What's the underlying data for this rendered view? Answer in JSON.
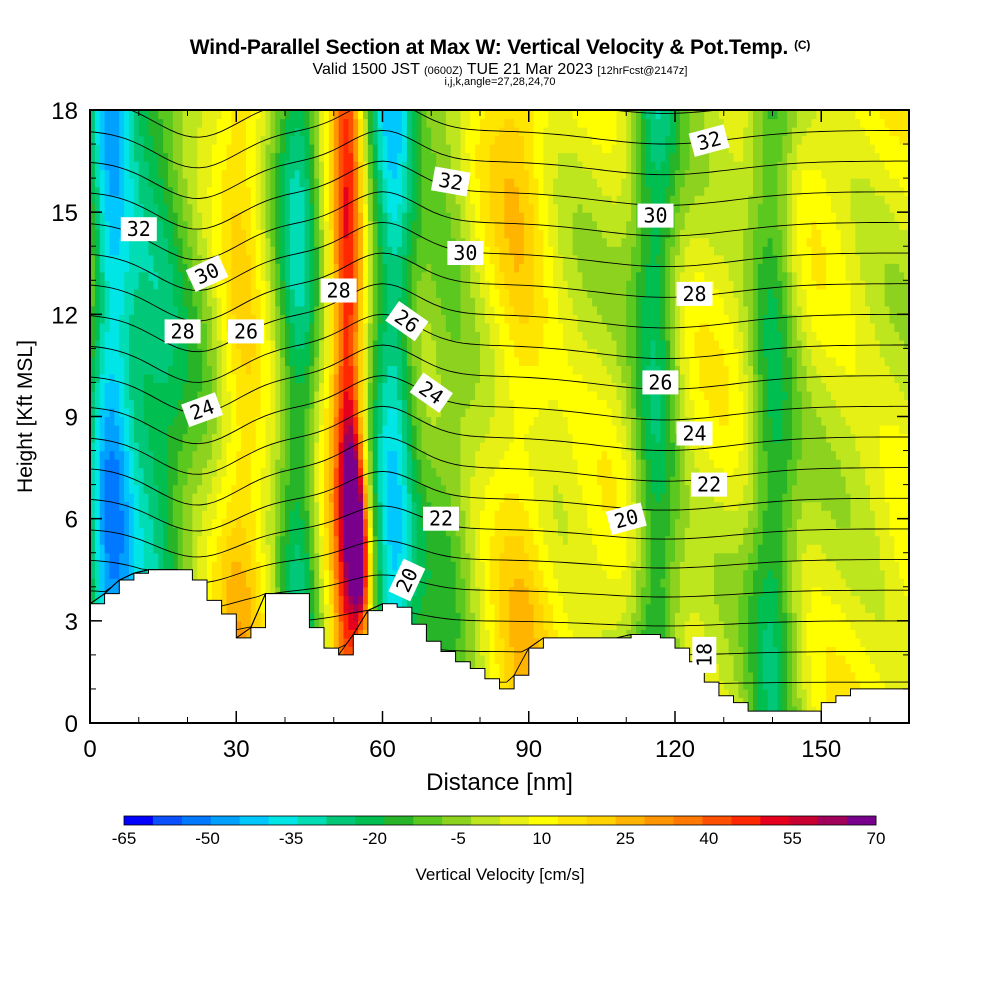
{
  "title": {
    "main": "Wind-Parallel Section at Max W: Vertical Velocity & Pot.Temp.",
    "copyright": "(C)",
    "valid_prefix": "Valid 1500 JST",
    "utc": "(0600Z)",
    "valid_date": "TUE 21 Mar 2023",
    "forecast": "[12hrFcst@2147z]",
    "indices": "i,j,k,angle=27,28,24,70"
  },
  "chart_data": {
    "type": "heatmap",
    "xlabel": "Distance [nm]",
    "ylabel": "Height [Kft MSL]",
    "xlim": [
      0,
      168
    ],
    "ylim": [
      0,
      18
    ],
    "x_ticks": [
      0,
      30,
      60,
      90,
      120,
      150
    ],
    "y_ticks": [
      0,
      3,
      6,
      9,
      12,
      15,
      18
    ],
    "grid": false,
    "colorbar": {
      "label": "Vertical Velocity [cm/s]",
      "tick_labels": [
        -65,
        -50,
        -35,
        -20,
        -5,
        10,
        25,
        40,
        55,
        70
      ],
      "colors": [
        "#0000ff",
        "#0a50ff",
        "#0078ff",
        "#00a0ff",
        "#00c8ff",
        "#00e6e6",
        "#00dcb4",
        "#00c878",
        "#00be50",
        "#28b428",
        "#5ac81e",
        "#8cd21e",
        "#bee61e",
        "#e6f014",
        "#ffff00",
        "#ffe600",
        "#ffd200",
        "#ffb400",
        "#ff9600",
        "#ff7800",
        "#ff5000",
        "#ff2800",
        "#e6001e",
        "#c80032",
        "#a0005a",
        "#78008c"
      ]
    },
    "velocity_field": {
      "description_units": "cm/s",
      "vertical_bands": [
        {
          "center_x": 4,
          "width": 5,
          "value": -38
        },
        {
          "center_x": 13,
          "width": 7,
          "value": -22
        },
        {
          "center_x": 22,
          "width": 6,
          "value": 0
        },
        {
          "center_x": 31,
          "width": 5,
          "value": 20
        },
        {
          "center_x": 43,
          "width": 5,
          "value": -25
        },
        {
          "center_x": 49,
          "width": 4,
          "value": 15
        },
        {
          "center_x": 53,
          "width": 3,
          "value": 45
        },
        {
          "center_x": 62,
          "width": 5,
          "value": -35
        },
        {
          "center_x": 73,
          "width": 6,
          "value": -8
        },
        {
          "center_x": 88,
          "width": 6,
          "value": 18
        },
        {
          "center_x": 99,
          "width": 7,
          "value": 5
        },
        {
          "center_x": 116,
          "width": 5,
          "value": -22
        },
        {
          "center_x": 128,
          "width": 6,
          "value": 5
        },
        {
          "center_x": 140,
          "width": 5,
          "value": -18
        },
        {
          "center_x": 160,
          "width": 6,
          "value": 5
        }
      ],
      "max_updraft": {
        "x": 55,
        "y": 5.5,
        "value": 70
      }
    },
    "terrain_kft": {
      "x": [
        0,
        3,
        6,
        9,
        12,
        15,
        18,
        21,
        24,
        27,
        30,
        33,
        36,
        39,
        42,
        45,
        48,
        51,
        54,
        57,
        60,
        63,
        66,
        69,
        72,
        75,
        78,
        81,
        84,
        87,
        90,
        93,
        96,
        99,
        102,
        105,
        108,
        111,
        114,
        117,
        120,
        123,
        126,
        129,
        132,
        135,
        138,
        141,
        144,
        147,
        150,
        153,
        156,
        159,
        162,
        165,
        168
      ],
      "y": [
        3.5,
        3.8,
        4.2,
        4.4,
        4.5,
        4.5,
        4.5,
        4.2,
        3.6,
        3.2,
        2.5,
        2.8,
        3.8,
        3.8,
        3.8,
        2.8,
        2.2,
        2.0,
        2.6,
        3.3,
        3.5,
        3.4,
        2.9,
        2.4,
        2.1,
        1.8,
        1.6,
        1.3,
        1.0,
        1.4,
        2.2,
        2.5,
        2.5,
        2.5,
        2.5,
        2.5,
        2.5,
        2.6,
        2.6,
        2.5,
        2.2,
        1.8,
        1.2,
        0.8,
        0.6,
        0.35,
        0.35,
        0.35,
        0.35,
        0.35,
        0.6,
        0.8,
        1.0,
        1.0,
        1.0,
        1.0,
        1.0
      ]
    },
    "theta_contours": [
      {
        "level": 18,
        "label": "18",
        "label_pos": [
          126,
          2.0
        ],
        "label_angle": -90
      },
      {
        "level": 20,
        "label": "20",
        "label_pos": [
          65,
          4.2
        ],
        "label_angle": -65
      },
      {
        "level": 20,
        "label": "20",
        "label_pos": [
          110,
          6.0
        ],
        "label_angle": -15
      },
      {
        "level": 22,
        "label": "22",
        "label_pos": [
          72,
          6.0
        ],
        "label_angle": 0
      },
      {
        "level": 22,
        "label": "22",
        "label_pos": [
          127,
          7.0
        ],
        "label_angle": 0
      },
      {
        "level": 24,
        "label": "24",
        "label_pos": [
          23,
          9.2
        ],
        "label_angle": -20
      },
      {
        "level": 24,
        "label": "24",
        "label_pos": [
          70,
          9.7
        ],
        "label_angle": 35
      },
      {
        "level": 24,
        "label": "24",
        "label_pos": [
          124,
          8.5
        ],
        "label_angle": 0
      },
      {
        "level": 26,
        "label": "26",
        "label_pos": [
          32,
          11.5
        ],
        "label_angle": 0
      },
      {
        "level": 26,
        "label": "26",
        "label_pos": [
          65,
          11.8
        ],
        "label_angle": 35
      },
      {
        "level": 26,
        "label": "26",
        "label_pos": [
          117,
          10.0
        ],
        "label_angle": 0
      },
      {
        "level": 28,
        "label": "28",
        "label_pos": [
          19,
          11.5
        ],
        "label_angle": 0
      },
      {
        "level": 28,
        "label": "28",
        "label_pos": [
          51,
          12.7
        ],
        "label_angle": 0
      },
      {
        "level": 28,
        "label": "28",
        "label_pos": [
          124,
          12.6
        ],
        "label_angle": 0
      },
      {
        "level": 30,
        "label": "30",
        "label_pos": [
          24,
          13.2
        ],
        "label_angle": -25
      },
      {
        "level": 30,
        "label": "30",
        "label_pos": [
          77,
          13.8
        ],
        "label_angle": 0
      },
      {
        "level": 30,
        "label": "30",
        "label_pos": [
          116,
          14.9
        ],
        "label_angle": 0
      },
      {
        "level": 32,
        "label": "32",
        "label_pos": [
          10,
          14.5
        ],
        "label_angle": 0
      },
      {
        "level": 32,
        "label": "32",
        "label_pos": [
          74,
          15.9
        ],
        "label_angle": 10
      },
      {
        "level": 32,
        "label": "32",
        "label_pos": [
          127,
          17.1
        ],
        "label_angle": -15
      }
    ]
  }
}
